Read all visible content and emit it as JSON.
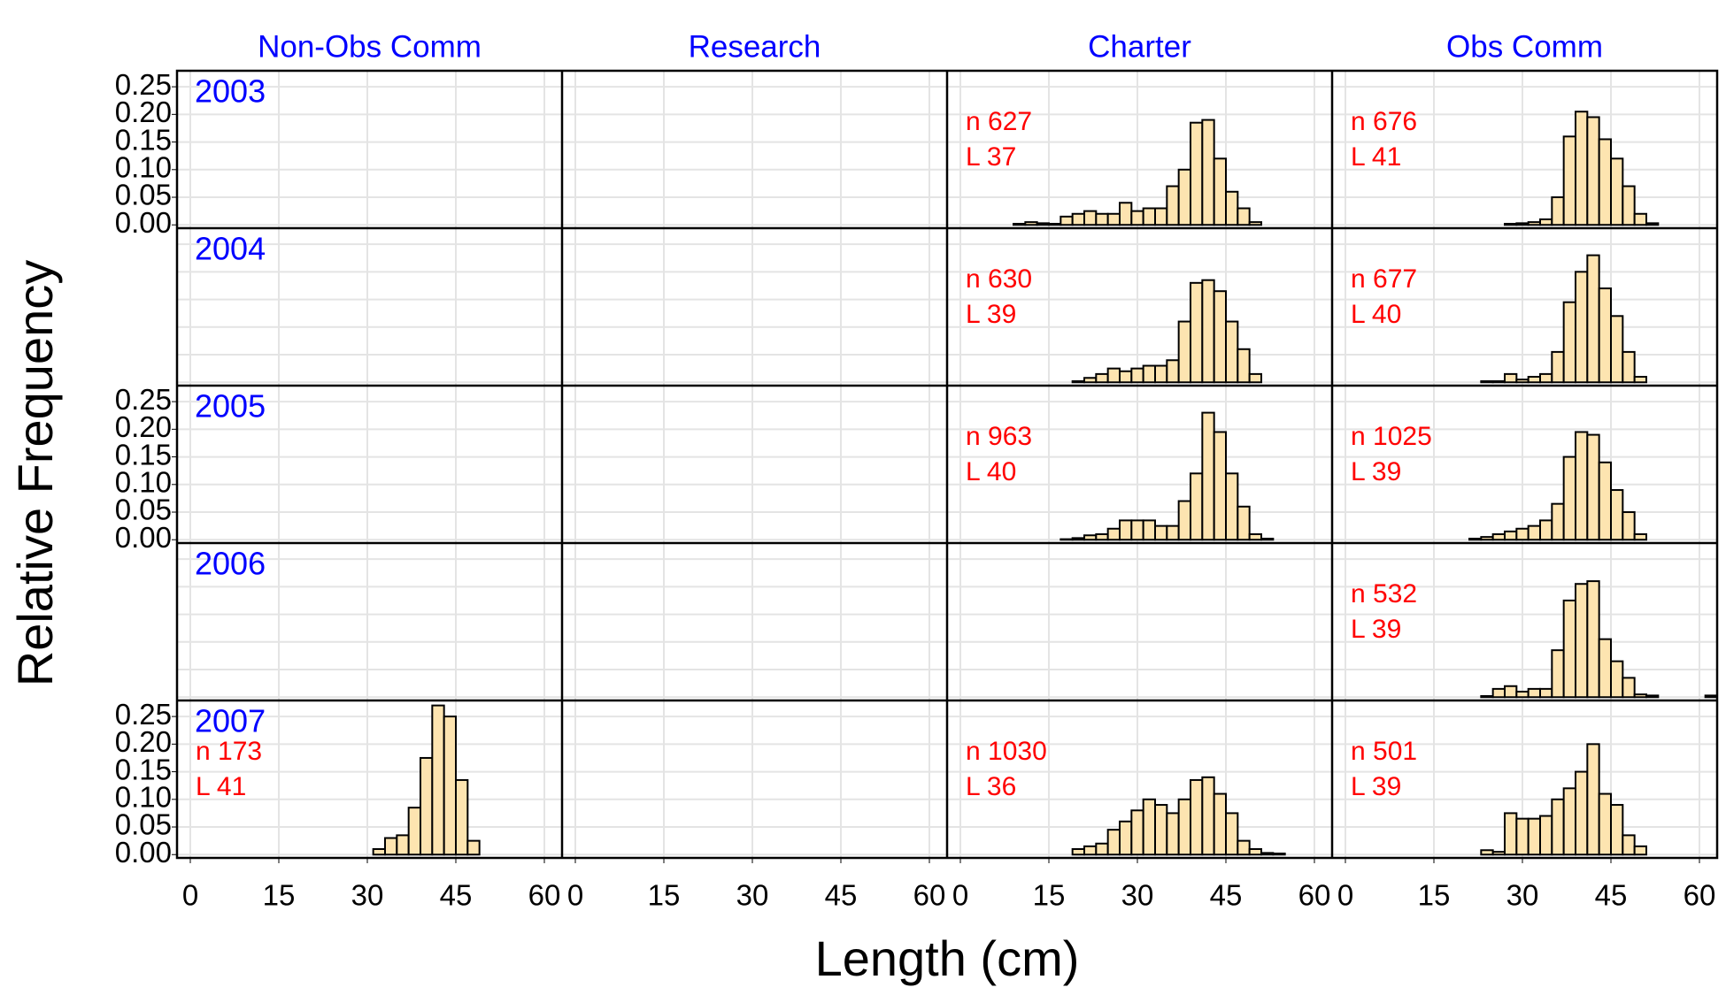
{
  "chart_data": {
    "type": "histogram",
    "xlabel": "Length (cm)",
    "ylabel": "Relative Frequency",
    "columns": [
      "Non-Obs Comm",
      "Research",
      "Charter",
      "Obs Comm"
    ],
    "rows": [
      "2003",
      "2004",
      "2005",
      "2006",
      "2007"
    ],
    "bins": [
      7,
      9,
      11,
      13,
      15,
      17,
      19,
      21,
      23,
      25,
      27,
      29,
      31,
      33,
      35,
      37,
      39,
      41,
      43,
      45,
      47,
      49,
      51,
      53,
      55,
      57,
      59,
      61,
      63
    ],
    "xlim": [
      -2.25,
      63
    ],
    "xticks": [
      0,
      15,
      30,
      45,
      60
    ],
    "ylim": [
      -0.006,
      0.279
    ],
    "yticks": [
      {
        "value": 0,
        "label": "0.00"
      },
      {
        "value": 0.05,
        "label": "0.05"
      },
      {
        "value": 0.1,
        "label": "0.10"
      },
      {
        "value": 0.15,
        "label": "0.15"
      },
      {
        "value": 0.2,
        "label": "0.20"
      },
      {
        "value": 0.25,
        "label": "0.25"
      }
    ],
    "grid": true,
    "color": "#fde4b0",
    "edge_color": "#000000",
    "header_color": "#0000ff",
    "note_color": "#ff0000",
    "panels": [
      {
        "row": "2003",
        "column": "Charter",
        "notes": [
          "n 627",
          "L 37"
        ],
        "values": [
          0,
          0.002,
          0.005,
          0.003,
          0.002,
          0.015,
          0.02,
          0.025,
          0.02,
          0.02,
          0.04,
          0.025,
          0.03,
          0.03,
          0.07,
          0.1,
          0.185,
          0.19,
          0.12,
          0.06,
          0.03,
          0.005,
          0,
          0,
          0,
          0,
          0,
          0
        ]
      },
      {
        "row": "2003",
        "column": "Obs Comm",
        "notes": [
          "n 676",
          "L 41"
        ],
        "values": [
          0,
          0,
          0,
          0,
          0,
          0,
          0,
          0,
          0,
          0,
          0.002,
          0.003,
          0.005,
          0.01,
          0.05,
          0.16,
          0.205,
          0.195,
          0.155,
          0.12,
          0.07,
          0.02,
          0.003,
          0,
          0,
          0,
          0,
          0
        ]
      },
      {
        "row": "2004",
        "column": "Charter",
        "notes": [
          "n 630",
          "L 39"
        ],
        "values": [
          0,
          0,
          0,
          0,
          0,
          0,
          0.002,
          0.008,
          0.015,
          0.025,
          0.02,
          0.025,
          0.03,
          0.03,
          0.04,
          0.11,
          0.18,
          0.185,
          0.165,
          0.11,
          0.06,
          0.015,
          0,
          0,
          0,
          0,
          0,
          0
        ]
      },
      {
        "row": "2004",
        "column": "Obs Comm",
        "notes": [
          "n 677",
          "L 40"
        ],
        "values": [
          0,
          0,
          0,
          0,
          0,
          0,
          0,
          0,
          0.002,
          0.002,
          0.015,
          0.005,
          0.01,
          0.015,
          0.055,
          0.145,
          0.2,
          0.23,
          0.17,
          0.12,
          0.055,
          0.01,
          0,
          0,
          0,
          0,
          0,
          0
        ]
      },
      {
        "row": "2005",
        "column": "Charter",
        "notes": [
          "n 963",
          "L 40"
        ],
        "values": [
          0,
          0,
          0,
          0,
          0,
          0.001,
          0.003,
          0.008,
          0.01,
          0.02,
          0.035,
          0.035,
          0.035,
          0.025,
          0.025,
          0.07,
          0.12,
          0.23,
          0.195,
          0.12,
          0.06,
          0.01,
          0.002,
          0,
          0,
          0,
          0,
          0
        ]
      },
      {
        "row": "2005",
        "column": "Obs Comm",
        "notes": [
          "n 1025",
          "L 39"
        ],
        "values": [
          0,
          0,
          0,
          0,
          0,
          0,
          0,
          0.002,
          0.005,
          0.01,
          0.015,
          0.02,
          0.025,
          0.035,
          0.065,
          0.15,
          0.195,
          0.19,
          0.14,
          0.09,
          0.05,
          0.01,
          0,
          0,
          0,
          0,
          0,
          0
        ]
      },
      {
        "row": "2006",
        "column": "Obs Comm",
        "notes": [
          "n 532",
          "L 39"
        ],
        "values": [
          0,
          0,
          0,
          0,
          0,
          0,
          0,
          0,
          0.002,
          0.015,
          0.02,
          0.01,
          0.015,
          0.015,
          0.085,
          0.175,
          0.205,
          0.21,
          0.105,
          0.065,
          0.035,
          0.005,
          0.003,
          0,
          0,
          0,
          0,
          0.003
        ]
      },
      {
        "row": "2007",
        "column": "Non-Obs Comm",
        "notes": [
          "n 173",
          "L 41"
        ],
        "values": [
          0,
          0,
          0,
          0,
          0,
          0,
          0,
          0,
          0,
          0,
          0,
          0,
          0.01,
          0.03,
          0.035,
          0.085,
          0.175,
          0.27,
          0.25,
          0.135,
          0.025,
          0,
          0,
          0,
          0,
          0,
          0,
          0
        ]
      },
      {
        "row": "2007",
        "column": "Charter",
        "notes": [
          "n 1030",
          "L 36"
        ],
        "values": [
          0,
          0,
          0,
          0,
          0,
          0,
          0.01,
          0.015,
          0.02,
          0.045,
          0.06,
          0.08,
          0.1,
          0.09,
          0.075,
          0.1,
          0.135,
          0.14,
          0.11,
          0.075,
          0.025,
          0.01,
          0.003,
          0.002,
          0,
          0,
          0,
          0
        ]
      },
      {
        "row": "2007",
        "column": "Obs Comm",
        "notes": [
          "n 501",
          "L 39"
        ],
        "values": [
          0,
          0,
          0,
          0,
          0,
          0,
          0,
          0,
          0.008,
          0.005,
          0.075,
          0.065,
          0.065,
          0.07,
          0.1,
          0.12,
          0.15,
          0.2,
          0.11,
          0.09,
          0.035,
          0.015,
          0,
          0,
          0,
          0,
          0,
          0
        ]
      }
    ]
  }
}
